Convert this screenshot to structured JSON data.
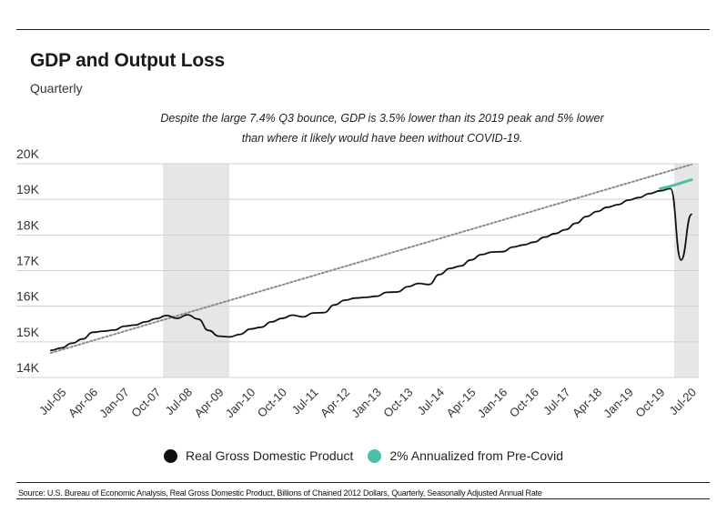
{
  "title": "GDP and Output Loss",
  "subtitle": "Quarterly",
  "annotation_line1": "Despite the large 7.4% Q3 bounce, GDP is 3.5% lower than its 2019 peak and 5% lower",
  "annotation_line2": "than where it likely would have been without COVID-19.",
  "source": "Source:  U.S. Bureau of Economic Analysis, Real Gross Domestic Product, Billions of Chained 2012 Dollars, Quarterly, Seasonally Adjusted Annual Rate",
  "colors": {
    "gdp": "#111111",
    "trend2pct": "#4dbfa8",
    "trendline": "#8a8a8a",
    "recession": "#e6e6e6",
    "grid": "#d0d0d0"
  },
  "chart_data": {
    "type": "line",
    "ylim": [
      14000,
      20000
    ],
    "y_ticks": [
      14000,
      15000,
      16000,
      17000,
      18000,
      19000,
      20000
    ],
    "y_tick_labels": [
      "14K",
      "15K",
      "16K",
      "17K",
      "18K",
      "19K",
      "20K"
    ],
    "x_tick_labels": [
      "Jul-05",
      "Apr-06",
      "Jan-07",
      "Oct-07",
      "Jul-08",
      "Apr-09",
      "Jan-10",
      "Oct-10",
      "Jul-11",
      "Apr-12",
      "Jan-13",
      "Oct-13",
      "Jul-14",
      "Apr-15",
      "Jan-16",
      "Oct-16",
      "Jul-17",
      "Apr-18",
      "Jan-19",
      "Oct-19",
      "Jul-20"
    ],
    "x_range": [
      "2005-04-01",
      "2020-10-01"
    ],
    "grid": "horizontal",
    "legend_position": "bottom",
    "recessions": [
      [
        "2007-12-01",
        "2009-06-30"
      ],
      [
        "2020-02-01",
        "2020-10-01"
      ]
    ],
    "series": [
      {
        "name": "Real Gross Domestic Product",
        "x": [
          "2005-04-01",
          "2005-07-01",
          "2005-10-01",
          "2006-01-01",
          "2006-04-01",
          "2006-07-01",
          "2006-10-01",
          "2007-01-01",
          "2007-04-01",
          "2007-07-01",
          "2007-10-01",
          "2008-01-01",
          "2008-04-01",
          "2008-07-01",
          "2008-10-01",
          "2009-01-01",
          "2009-04-01",
          "2009-07-01",
          "2009-10-01",
          "2010-01-01",
          "2010-04-01",
          "2010-07-01",
          "2010-10-01",
          "2011-01-01",
          "2011-04-01",
          "2011-07-01",
          "2011-10-01",
          "2012-01-01",
          "2012-04-01",
          "2012-07-01",
          "2012-10-01",
          "2013-01-01",
          "2013-04-01",
          "2013-07-01",
          "2013-10-01",
          "2014-01-01",
          "2014-04-01",
          "2014-07-01",
          "2014-10-01",
          "2015-01-01",
          "2015-04-01",
          "2015-07-01",
          "2015-10-01",
          "2016-01-01",
          "2016-04-01",
          "2016-07-01",
          "2016-10-01",
          "2017-01-01",
          "2017-04-01",
          "2017-07-01",
          "2017-10-01",
          "2018-01-01",
          "2018-04-01",
          "2018-07-01",
          "2018-10-01",
          "2019-01-01",
          "2019-04-01",
          "2019-07-01",
          "2019-10-01",
          "2020-01-01",
          "2020-04-01",
          "2020-07-01"
        ],
        "values": [
          14760,
          14830,
          14960,
          15080,
          15270,
          15300,
          15330,
          15440,
          15470,
          15560,
          15650,
          15740,
          15660,
          15760,
          15640,
          15320,
          15160,
          15140,
          15210,
          15360,
          15410,
          15560,
          15660,
          15750,
          15700,
          15810,
          15820,
          16040,
          16170,
          16230,
          16250,
          16280,
          16390,
          16400,
          16550,
          16640,
          16610,
          16890,
          17060,
          17130,
          17300,
          17450,
          17520,
          17530,
          17660,
          17720,
          17800,
          17940,
          18040,
          18150,
          18330,
          18520,
          18660,
          18780,
          18850,
          18980,
          19050,
          19160,
          19240,
          19300,
          17300,
          18580
        ]
      },
      {
        "name": "2% Annualized from Pre-Covid",
        "x": [
          "2019-10-01",
          "2020-01-01",
          "2020-04-01",
          "2020-07-01"
        ],
        "values": [
          19300,
          19370,
          19460,
          19550
        ]
      },
      {
        "x": [
          "2005-04-01",
          "2020-07-01"
        ],
        "values": [
          14690,
          19980
        ]
      }
    ]
  }
}
